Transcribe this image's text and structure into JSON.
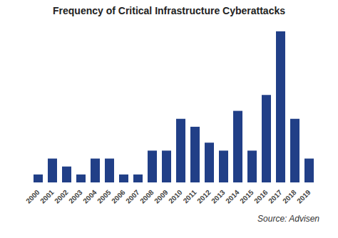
{
  "chart_data": {
    "type": "bar",
    "title": "Frequency of Critical Infrastructure Cyberattacks",
    "caption": "Source: Advisen",
    "categories": [
      "2000",
      "2001",
      "2002",
      "2003",
      "2004",
      "2005",
      "2006",
      "2007",
      "2008",
      "2009",
      "2010",
      "2011",
      "2012",
      "2013",
      "2014",
      "2015",
      "2016",
      "2017",
      "2018",
      "2019"
    ],
    "values": [
      1,
      3,
      2,
      1,
      3,
      3,
      1,
      1,
      4,
      4,
      8,
      7,
      5,
      4,
      9,
      4,
      11,
      19,
      8,
      3
    ],
    "color": "#213f87",
    "ylim": [
      0,
      19
    ],
    "tick_labels": "x",
    "grid": false
  }
}
